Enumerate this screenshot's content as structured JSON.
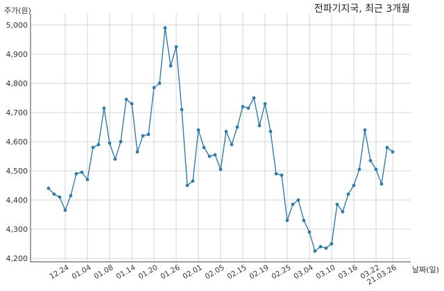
{
  "chart_data": {
    "type": "line",
    "title": "전파기지국, 최근 3개월",
    "xlabel": "날짜(일)",
    "ylabel": "주가(원)",
    "ylim": [
      4200,
      5000
    ],
    "yticks": [
      4200,
      4300,
      4400,
      4500,
      4600,
      4700,
      4800,
      4900,
      5000
    ],
    "ytick_labels": [
      "4,200",
      "4,300",
      "4,400",
      "4,500",
      "4,600",
      "4,700",
      "4,800",
      "4,900",
      "5,000"
    ],
    "xtick_labels": [
      "12.24",
      "01.04",
      "01.08",
      "01.14",
      "01.20",
      "01.26",
      "02.01",
      "02.05",
      "02.15",
      "02.19",
      "02.25",
      "03.04",
      "03.10",
      "03.16",
      "03.22",
      "21.03.26"
    ],
    "xtick_index": [
      3,
      7,
      11,
      15,
      19,
      23,
      27,
      31,
      35,
      39,
      43,
      47,
      51,
      55,
      59,
      62
    ],
    "grid": true,
    "color": "#2e7aa8",
    "series": [
      {
        "values": [
          4440,
          4420,
          4410,
          4365,
          4415,
          4490,
          4495,
          4470,
          4580,
          4590,
          4715,
          4595,
          4540,
          4600,
          4745,
          4730,
          4565,
          4620,
          4625,
          4785,
          4800,
          4990,
          4860,
          4925,
          4710,
          4450,
          4465,
          4640,
          4580,
          4550,
          4555,
          4505,
          4635,
          4590,
          4650,
          4720,
          4715,
          4750,
          4655,
          4730,
          4635,
          4490,
          4485,
          4330,
          4385,
          4400,
          4330,
          4290,
          4225,
          4240,
          4235,
          4250,
          4385,
          4360,
          4420,
          4450,
          4505,
          4640,
          4535,
          4505,
          4455,
          4580,
          4565
        ]
      }
    ]
  }
}
